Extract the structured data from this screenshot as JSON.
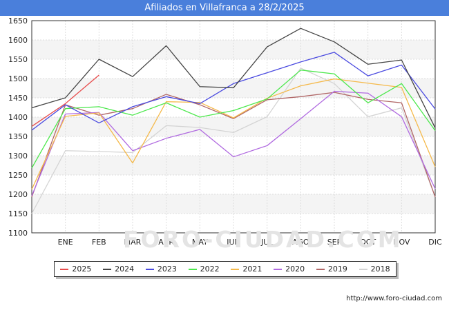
{
  "header": {
    "title": "Afiliados en Villafranca a 28/2/2025"
  },
  "watermark": "FORO-CIUDAD.COM",
  "source": "http://www.foro-ciudad.com",
  "chart_data": {
    "type": "line",
    "title": "Afiliados en Villafranca a 28/2/2025",
    "xlabel": "",
    "ylabel": "",
    "categories": [
      "",
      "ENE",
      "FEB",
      "MAR",
      "ABR",
      "MAY",
      "JUN",
      "JUL",
      "AGO",
      "SEP",
      "OCT",
      "NOV",
      "DIC"
    ],
    "ylim": [
      1100,
      1650
    ],
    "yticks": [
      1100,
      1150,
      1200,
      1250,
      1300,
      1350,
      1400,
      1450,
      1500,
      1550,
      1600,
      1650
    ],
    "grid": true,
    "legend_position": "bottom",
    "series": [
      {
        "name": "2025",
        "color": "#e84c4c",
        "values": [
          1376,
          1435,
          1509,
          null,
          null,
          null,
          null,
          null,
          null,
          null,
          null,
          null,
          null
        ]
      },
      {
        "name": "2024",
        "color": "#444444",
        "values": [
          1424,
          1450,
          1550,
          1505,
          1585,
          1479,
          1476,
          1582,
          1630,
          1595,
          1537,
          1548,
          1372
        ]
      },
      {
        "name": "2023",
        "color": "#4a4ae0",
        "values": [
          1366,
          1432,
          1385,
          1427,
          1453,
          1435,
          1487,
          1515,
          1543,
          1568,
          1507,
          1535,
          1421
        ]
      },
      {
        "name": "2022",
        "color": "#4ce84c",
        "values": [
          1268,
          1422,
          1427,
          1405,
          1437,
          1400,
          1417,
          1447,
          1522,
          1512,
          1437,
          1487,
          1365
        ]
      },
      {
        "name": "2021",
        "color": "#f5b94a",
        "values": [
          1213,
          1402,
          1411,
          1281,
          1440,
          1438,
          1398,
          1449,
          1481,
          1499,
          1488,
          1477,
          1271
        ]
      },
      {
        "name": "2020",
        "color": "#b06ae0",
        "values": [
          1196,
          1408,
          1412,
          1313,
          1345,
          1368,
          1297,
          1326,
          1396,
          1467,
          1462,
          1401,
          1214
        ]
      },
      {
        "name": "2019",
        "color": "#b06666",
        "values": [
          1193,
          1432,
          1405,
          1422,
          1459,
          1432,
          1396,
          1445,
          1453,
          1464,
          1446,
          1437,
          1193
        ]
      },
      {
        "name": "2018",
        "color": "#d4d4d4",
        "values": [
          1150,
          1313,
          1311,
          1308,
          1378,
          1373,
          1360,
          1401,
          1527,
          1487,
          1401,
          1424,
          1193
        ]
      }
    ]
  }
}
